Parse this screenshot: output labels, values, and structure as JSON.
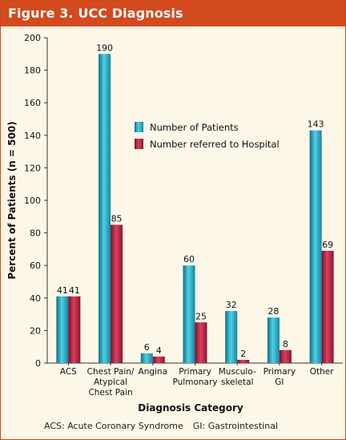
{
  "figure": {
    "title": "Figure 3. UCC Diagnosis"
  },
  "colors": {
    "title_bar": "#d24a1e",
    "background": "#fdf7e8",
    "series_patients": "#1e9bb6",
    "series_referred": "#b5213f"
  },
  "chart_data": {
    "type": "bar",
    "title": "",
    "xlabel": "Diagnosis Category",
    "ylabel": "Percent of Patients (n = 500)",
    "ylim": [
      0,
      200
    ],
    "yticks": [
      0,
      20,
      40,
      60,
      80,
      100,
      120,
      140,
      160,
      180,
      200
    ],
    "grid": false,
    "legend_position": "center-right",
    "categories": [
      [
        "ACS"
      ],
      [
        "Chest Pain/",
        "Atypical",
        "Chest Pain"
      ],
      [
        "Angina"
      ],
      [
        "Primary",
        "Pulmonary"
      ],
      [
        "Musculo-",
        "skeletal"
      ],
      [
        "Primary",
        "GI"
      ],
      [
        "Other"
      ]
    ],
    "series": [
      {
        "name": "Number of Patients",
        "color": "#1e9bb6",
        "values": [
          41,
          190,
          6,
          60,
          32,
          28,
          143
        ]
      },
      {
        "name": "Number referred to Hospital",
        "color": "#b5213f",
        "values": [
          41,
          85,
          4,
          25,
          2,
          8,
          69
        ]
      }
    ]
  },
  "footnote": {
    "acs": "ACS: Acute Coronary Syndrome",
    "gi": "GI: Gastrointestinal"
  }
}
